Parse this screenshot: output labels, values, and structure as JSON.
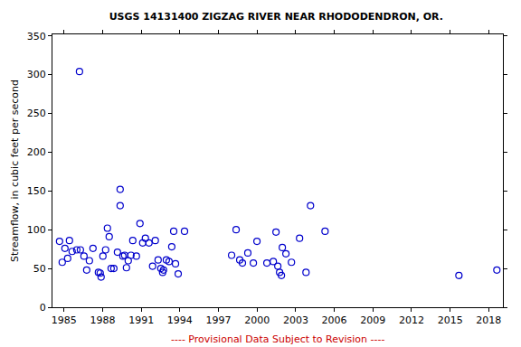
{
  "chart_data": {
    "type": "scatter",
    "title": "USGS 14131400 ZIGZAG RIVER NEAR RHODODENDRON, OR.",
    "y_label": "Streamflow, in cubic feet per second",
    "annotations": [
      "---- Provisional Data Subject to Revision ----"
    ],
    "color": "#0000cc",
    "marker": "open circle",
    "grid": false,
    "x": [
      1984.65,
      1984.86,
      1985.07,
      1985.28,
      1985.42,
      1985.63,
      1985.99,
      1986.2,
      1986.27,
      1986.55,
      1986.76,
      1986.97,
      1987.25,
      1987.67,
      1987.81,
      1987.88,
      1988.02,
      1988.23,
      1988.37,
      1988.51,
      1988.66,
      1988.87,
      1989.15,
      1989.36,
      1989.36,
      1989.57,
      1989.71,
      1989.85,
      1989.99,
      1990.2,
      1990.34,
      1990.62,
      1990.9,
      1991.11,
      1991.32,
      1991.6,
      1991.88,
      1992.09,
      1992.31,
      1992.52,
      1992.66,
      1992.73,
      1992.95,
      1993.16,
      1993.37,
      1993.52,
      1993.66,
      1993.87,
      1994.36,
      1998.02,
      1998.37,
      1998.65,
      1998.86,
      1999.28,
      1999.71,
      1999.99,
      2000.76,
      2001.26,
      2001.47,
      2001.61,
      2001.75,
      2001.89,
      2001.96,
      2002.24,
      2002.67,
      2003.3,
      2003.8,
      2004.15,
      2005.28,
      2015.68,
      2018.63
    ],
    "values": [
      85,
      58,
      76,
      63,
      86,
      72,
      74,
      304,
      74,
      66,
      48,
      60,
      76,
      45,
      44,
      39,
      66,
      74,
      102,
      91,
      50,
      50,
      71,
      152,
      131,
      66,
      67,
      51,
      60,
      67,
      86,
      66,
      108,
      83,
      89,
      83,
      53,
      86,
      61,
      50,
      45,
      48,
      61,
      59,
      78,
      98,
      56,
      43,
      98,
      67,
      100,
      61,
      57,
      70,
      57,
      85,
      57,
      59,
      97,
      53,
      45,
      41,
      77,
      69,
      58,
      89,
      45,
      131,
      98,
      41,
      48
    ],
    "xlim": [
      1984.1,
      2019.1
    ],
    "xticks": [
      1985,
      1988,
      1991,
      1994,
      1997,
      2000,
      2003,
      2006,
      2009,
      2012,
      2015,
      2018
    ],
    "ylim": [
      0,
      352
    ],
    "yticks": [
      0,
      50,
      100,
      150,
      200,
      250,
      300,
      350
    ]
  }
}
